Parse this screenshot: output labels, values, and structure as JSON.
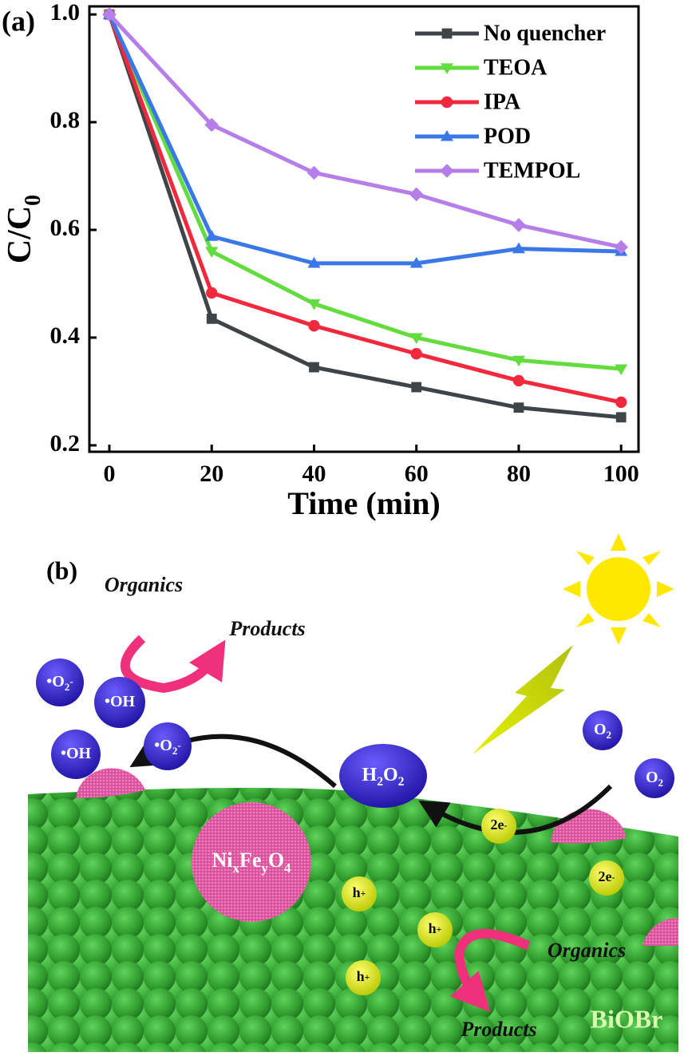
{
  "chart_data": {
    "type": "line",
    "panel_label": "(a)",
    "x_label": "Time (min)",
    "y_label": "C/C",
    "y_label_sub": "0",
    "x": [
      0,
      20,
      40,
      60,
      80,
      100
    ],
    "series": [
      {
        "name": "No quencher",
        "color": "#3f4448",
        "marker": "square",
        "values": [
          1.0,
          0.435,
          0.345,
          0.308,
          0.27,
          0.252
        ]
      },
      {
        "name": "TEOA",
        "color": "#62dc3e",
        "marker": "triangle-down",
        "values": [
          1.0,
          0.56,
          0.463,
          0.4,
          0.358,
          0.342
        ]
      },
      {
        "name": "IPA",
        "color": "#f2293d",
        "marker": "circle",
        "values": [
          1.0,
          0.483,
          0.422,
          0.37,
          0.32,
          0.28
        ]
      },
      {
        "name": "POD",
        "color": "#3a78e8",
        "marker": "triangle-up",
        "values": [
          1.0,
          0.588,
          0.538,
          0.538,
          0.565,
          0.56
        ]
      },
      {
        "name": "TEMPOL",
        "color": "#b57ee8",
        "marker": "diamond",
        "values": [
          1.0,
          0.795,
          0.706,
          0.666,
          0.609,
          0.568
        ]
      }
    ],
    "xlim": [
      -3.9,
      103.4
    ],
    "xticks": [
      0,
      20,
      40,
      60,
      80,
      100
    ],
    "ylim": [
      0.188,
      1.015
    ],
    "yticks": [
      0.2,
      0.4,
      0.6,
      0.8,
      {
        "value": 1,
        "label": "1.0"
      }
    ],
    "legend": "upper-right"
  },
  "diagram": {
    "label": "(b)",
    "texts": [
      "Organics",
      "Products",
      "Organics",
      "Products",
      "BiOBr"
    ],
    "species": [
      [
        {
          "text": "•O"
        },
        {
          "sub": "2"
        },
        {
          "sup": "-"
        }
      ],
      [
        {
          "text": "•OH"
        }
      ],
      [
        {
          "text": "•OH"
        }
      ],
      [
        {
          "text": "•O"
        },
        {
          "sub": "2"
        },
        {
          "sup": "-"
        }
      ],
      [
        {
          "text": "H"
        },
        {
          "sub": "2"
        },
        {
          "text": "O"
        },
        {
          "sub": "2"
        }
      ],
      [
        {
          "text": "O"
        },
        {
          "sub": "2"
        }
      ],
      [
        {
          "text": "O"
        },
        {
          "sub": "2"
        }
      ],
      [
        {
          "text": "2e"
        },
        {
          "sup": "-"
        }
      ],
      [
        {
          "text": "2e"
        },
        {
          "sup": "-"
        }
      ],
      [
        {
          "text": "h"
        },
        {
          "sup": "+"
        }
      ],
      [
        {
          "text": "h"
        },
        {
          "sup": "+"
        }
      ],
      [
        {
          "text": "h"
        },
        {
          "sup": "+"
        }
      ],
      [
        {
          "text": "Ni"
        },
        {
          "sub": "x"
        },
        {
          "text": "Fe"
        },
        {
          "sub": "y"
        },
        {
          "text": "O"
        },
        {
          "sub": "4"
        }
      ]
    ]
  }
}
